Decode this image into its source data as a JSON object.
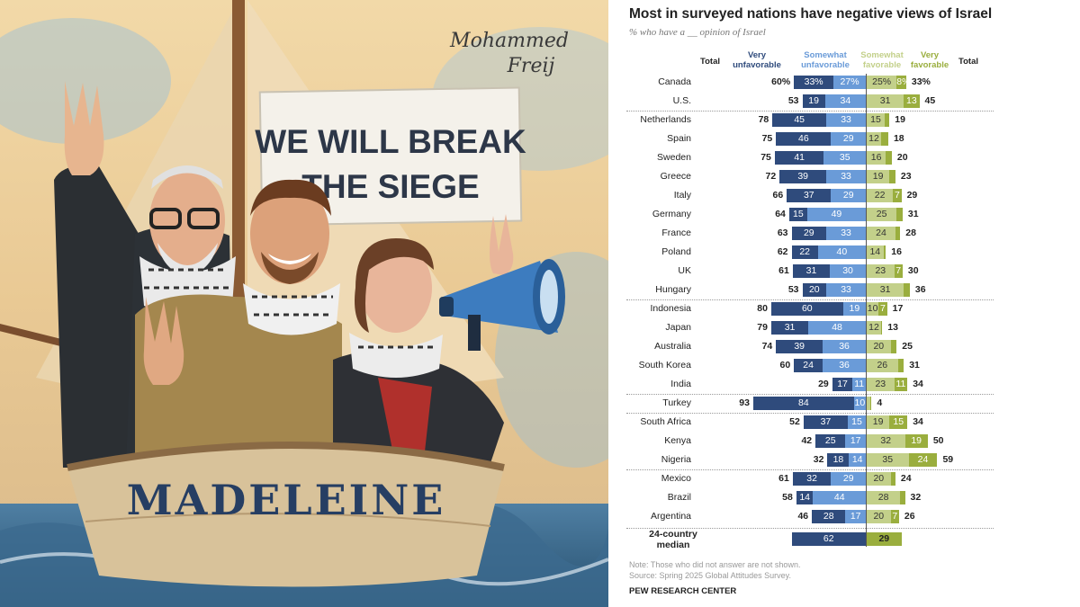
{
  "artwork": {
    "signature": "Mohammed\nFreij",
    "banner_line1": "WE WILL BREAK",
    "banner_line2": "THE SIEGE",
    "boat_name": "MADELEINE"
  },
  "headers": {
    "total_left": "Total",
    "very_unfav": "Very unfavorable",
    "somewhat_unfav": "Somewhat unfavorable",
    "somewhat_fav": "Somewhat favorable",
    "very_fav": "Very favorable",
    "total_right": "Total"
  },
  "colors": {
    "very_unfav": "#2f4b7c",
    "somewhat_unfav": "#6a9bd8",
    "somewhat_fav": "#c3d08a",
    "very_fav": "#9aae3e"
  },
  "notes": {
    "note": "Note: Those who did not answer are not shown.",
    "source": "Source: Spring 2025 Global Attitudes Survey.",
    "org": "PEW RESEARCH CENTER"
  },
  "chart_data": {
    "type": "bar",
    "title": "Most in surveyed nations have negative views of Israel",
    "subtitle": "% who have a __ opinion of Israel",
    "series": [
      {
        "name": "Very unfavorable"
      },
      {
        "name": "Somewhat unfavorable"
      },
      {
        "name": "Somewhat favorable"
      },
      {
        "name": "Very favorable"
      }
    ],
    "rows": [
      {
        "country": "Canada",
        "unfav_total": "60%",
        "very_unfav": 33,
        "somewhat_unfav": 27,
        "somewhat_fav": 25,
        "very_fav": 8,
        "fav_total": "33%",
        "pct": true
      },
      {
        "country": "U.S.",
        "unfav_total": "53",
        "very_unfav": 19,
        "somewhat_unfav": 34,
        "somewhat_fav": 31,
        "very_fav": 13,
        "fav_total": "45"
      },
      {
        "country": "Netherlands",
        "unfav_total": "78",
        "very_unfav": 45,
        "somewhat_unfav": 33,
        "somewhat_fav": 15,
        "very_fav": 4,
        "fav_total": "19",
        "group_start": true
      },
      {
        "country": "Spain",
        "unfav_total": "75",
        "very_unfav": 46,
        "somewhat_unfav": 29,
        "somewhat_fav": 12,
        "very_fav": 6,
        "fav_total": "18"
      },
      {
        "country": "Sweden",
        "unfav_total": "75",
        "very_unfav": 41,
        "somewhat_unfav": 35,
        "somewhat_fav": 16,
        "very_fav": 5,
        "fav_total": "20"
      },
      {
        "country": "Greece",
        "unfav_total": "72",
        "very_unfav": 39,
        "somewhat_unfav": 33,
        "somewhat_fav": 19,
        "very_fav": 5,
        "fav_total": "23"
      },
      {
        "country": "Italy",
        "unfav_total": "66",
        "very_unfav": 37,
        "somewhat_unfav": 29,
        "somewhat_fav": 22,
        "very_fav": 7,
        "fav_total": "29"
      },
      {
        "country": "Germany",
        "unfav_total": "64",
        "very_unfav": 15,
        "somewhat_unfav": 49,
        "somewhat_fav": 25,
        "very_fav": 5,
        "fav_total": "31"
      },
      {
        "country": "France",
        "unfav_total": "63",
        "very_unfav": 29,
        "somewhat_unfav": 33,
        "somewhat_fav": 24,
        "very_fav": 4,
        "fav_total": "28"
      },
      {
        "country": "Poland",
        "unfav_total": "62",
        "very_unfav": 22,
        "somewhat_unfav": 40,
        "somewhat_fav": 14,
        "very_fav": 2,
        "fav_total": "16"
      },
      {
        "country": "UK",
        "unfav_total": "61",
        "very_unfav": 31,
        "somewhat_unfav": 30,
        "somewhat_fav": 23,
        "very_fav": 7,
        "fav_total": "30"
      },
      {
        "country": "Hungary",
        "unfav_total": "53",
        "very_unfav": 20,
        "somewhat_unfav": 33,
        "somewhat_fav": 31,
        "very_fav": 5,
        "fav_total": "36"
      },
      {
        "country": "Indonesia",
        "unfav_total": "80",
        "very_unfav": 60,
        "somewhat_unfav": 19,
        "somewhat_fav": 10,
        "very_fav": 7,
        "fav_total": "17",
        "group_start": true
      },
      {
        "country": "Japan",
        "unfav_total": "79",
        "very_unfav": 31,
        "somewhat_unfav": 48,
        "somewhat_fav": 12,
        "very_fav": 1,
        "fav_total": "13"
      },
      {
        "country": "Australia",
        "unfav_total": "74",
        "very_unfav": 39,
        "somewhat_unfav": 36,
        "somewhat_fav": 20,
        "very_fav": 5,
        "fav_total": "25"
      },
      {
        "country": "South Korea",
        "unfav_total": "60",
        "very_unfav": 24,
        "somewhat_unfav": 36,
        "somewhat_fav": 26,
        "very_fav": 5,
        "fav_total": "31"
      },
      {
        "country": "India",
        "unfav_total": "29",
        "very_unfav": 17,
        "somewhat_unfav": 11,
        "somewhat_fav": 23,
        "very_fav": 11,
        "fav_total": "34"
      },
      {
        "country": "Turkey",
        "unfav_total": "93",
        "very_unfav": 84,
        "somewhat_unfav": 10,
        "somewhat_fav": 3,
        "very_fav": 1,
        "fav_total": "4",
        "group_start": true
      },
      {
        "country": "South Africa",
        "unfav_total": "52",
        "very_unfav": 37,
        "somewhat_unfav": 15,
        "somewhat_fav": 19,
        "very_fav": 15,
        "fav_total": "34",
        "group_start": true
      },
      {
        "country": "Kenya",
        "unfav_total": "42",
        "very_unfav": 25,
        "somewhat_unfav": 17,
        "somewhat_fav": 32,
        "very_fav": 19,
        "fav_total": "50"
      },
      {
        "country": "Nigeria",
        "unfav_total": "32",
        "very_unfav": 18,
        "somewhat_unfav": 14,
        "somewhat_fav": 35,
        "very_fav": 24,
        "fav_total": "59"
      },
      {
        "country": "Mexico",
        "unfav_total": "61",
        "very_unfav": 32,
        "somewhat_unfav": 29,
        "somewhat_fav": 20,
        "very_fav": 4,
        "fav_total": "24",
        "group_start": true
      },
      {
        "country": "Brazil",
        "unfav_total": "58",
        "very_unfav": 14,
        "somewhat_unfav": 44,
        "somewhat_fav": 28,
        "very_fav": 4,
        "fav_total": "32"
      },
      {
        "country": "Argentina",
        "unfav_total": "46",
        "very_unfav": 28,
        "somewhat_unfav": 17,
        "somewhat_fav": 20,
        "very_fav": 7,
        "fav_total": "26"
      }
    ],
    "median": {
      "label": "24-country\nmedian",
      "unfav": 62,
      "fav": 29
    }
  }
}
